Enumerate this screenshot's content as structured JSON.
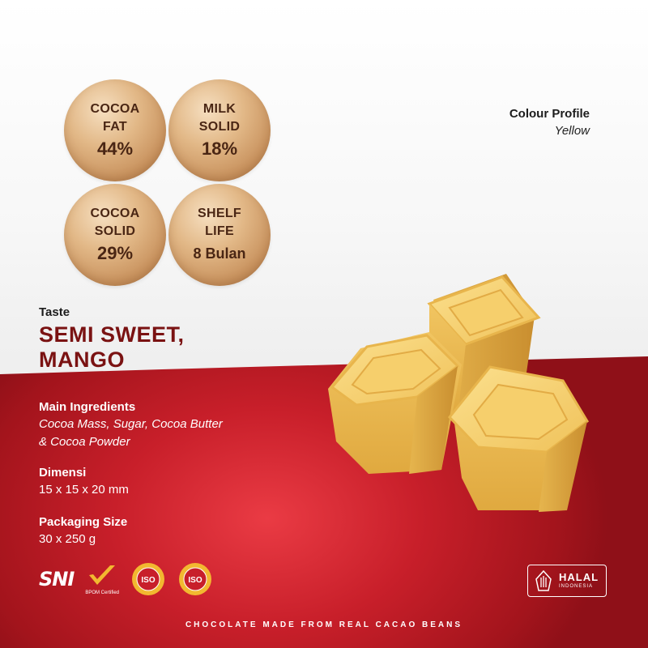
{
  "badges": [
    {
      "label_1": "COCOA",
      "label_2": "FAT",
      "value": "44%"
    },
    {
      "label_1": "MILK",
      "label_2": "SOLID",
      "value": "18%"
    },
    {
      "label_1": "COCOA",
      "label_2": "SOLID",
      "value": "29%"
    },
    {
      "label_1": "SHELF",
      "label_2": "LIFE",
      "value": "8 Bulan"
    }
  ],
  "colour_profile": {
    "label": "Colour Profile",
    "value": "Yellow"
  },
  "taste": {
    "label": "Taste",
    "line_1": "SEMI SWEET,",
    "line_2": "MANGO"
  },
  "ingredients": {
    "label": "Main Ingredients",
    "line_1": "Cocoa Mass, Sugar, Cocoa Butter",
    "line_2": "& Cocoa Powder"
  },
  "dimensions": {
    "label": "Dimensi",
    "value": "15 x 15 x 20 mm"
  },
  "packaging": {
    "label": "Packaging Size",
    "value": "30 x 250 g"
  },
  "certifications": {
    "sni": "SNI",
    "bpom": "BPOM Certified",
    "iso_1": "ISO",
    "iso_2": "ISO",
    "halal_main": "HALAL",
    "halal_sub": "INDONESIA"
  },
  "footer": "CHOCOLATE MADE FROM REAL CACAO BEANS",
  "colors": {
    "accent_red": "#c81f2a",
    "title_red": "#7a1212",
    "gold": "#e2b887",
    "chocolate_yellow": "#f2c458"
  }
}
